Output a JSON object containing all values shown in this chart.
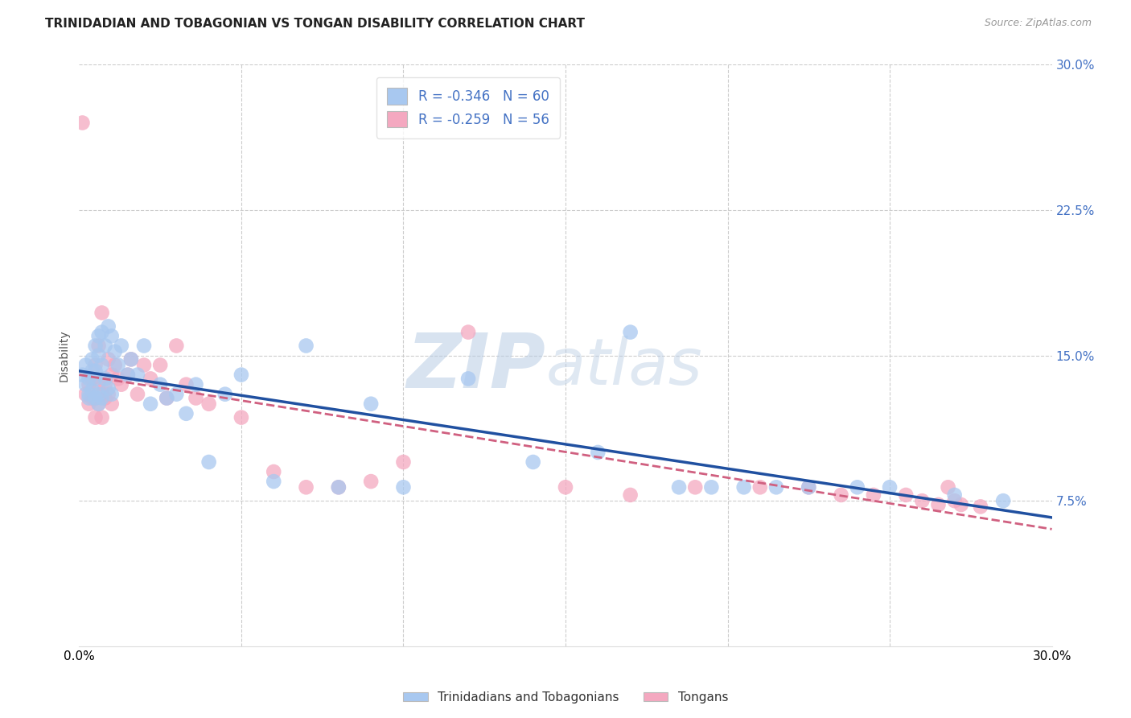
{
  "title": "TRINIDADIAN AND TOBAGONIAN VS TONGAN DISABILITY CORRELATION CHART",
  "source_text": "Source: ZipAtlas.com",
  "ylabel": "Disability",
  "xlim": [
    0.0,
    0.3
  ],
  "ylim": [
    0.0,
    0.3
  ],
  "xticks": [
    0.0,
    0.05,
    0.1,
    0.15,
    0.2,
    0.25,
    0.3
  ],
  "xtick_labels": [
    "0.0%",
    "",
    "",
    "",
    "",
    "",
    "30.0%"
  ],
  "yticks_right": [
    0.075,
    0.15,
    0.225,
    0.3
  ],
  "ytick_labels_right": [
    "7.5%",
    "15.0%",
    "22.5%",
    "30.0%"
  ],
  "blue_color": "#A8C8F0",
  "pink_color": "#F4A8C0",
  "blue_line_color": "#2050A0",
  "pink_line_color": "#D06080",
  "legend_label_1": "R = -0.346   N = 60",
  "legend_label_2": "R = -0.259   N = 56",
  "bottom_legend_blue": "Trinidadians and Tobagonians",
  "bottom_legend_pink": "Tongans",
  "watermark_zip": "ZIP",
  "watermark_atlas": "atlas",
  "watermark_color": "#C5D8EE",
  "background_color": "#ffffff",
  "grid_color": "#cccccc",
  "title_fontsize": 11,
  "blue_x": [
    0.001,
    0.002,
    0.002,
    0.003,
    0.003,
    0.003,
    0.004,
    0.004,
    0.004,
    0.005,
    0.005,
    0.005,
    0.005,
    0.006,
    0.006,
    0.006,
    0.006,
    0.007,
    0.007,
    0.007,
    0.008,
    0.008,
    0.009,
    0.009,
    0.01,
    0.01,
    0.011,
    0.012,
    0.013,
    0.015,
    0.016,
    0.018,
    0.02,
    0.022,
    0.025,
    0.027,
    0.03,
    0.033,
    0.036,
    0.04,
    0.045,
    0.05,
    0.06,
    0.07,
    0.08,
    0.09,
    0.1,
    0.12,
    0.14,
    0.16,
    0.17,
    0.185,
    0.195,
    0.205,
    0.215,
    0.225,
    0.24,
    0.25,
    0.27,
    0.285
  ],
  "blue_y": [
    0.14,
    0.145,
    0.135,
    0.13,
    0.138,
    0.128,
    0.142,
    0.132,
    0.148,
    0.155,
    0.128,
    0.138,
    0.142,
    0.16,
    0.125,
    0.15,
    0.13,
    0.162,
    0.145,
    0.128,
    0.155,
    0.138,
    0.165,
    0.133,
    0.16,
    0.13,
    0.152,
    0.145,
    0.155,
    0.14,
    0.148,
    0.14,
    0.155,
    0.125,
    0.135,
    0.128,
    0.13,
    0.12,
    0.135,
    0.095,
    0.13,
    0.14,
    0.085,
    0.155,
    0.082,
    0.125,
    0.082,
    0.138,
    0.095,
    0.1,
    0.162,
    0.082,
    0.082,
    0.082,
    0.082,
    0.082,
    0.082,
    0.082,
    0.078,
    0.075
  ],
  "pink_x": [
    0.001,
    0.002,
    0.003,
    0.003,
    0.004,
    0.004,
    0.005,
    0.005,
    0.005,
    0.006,
    0.006,
    0.006,
    0.007,
    0.007,
    0.007,
    0.008,
    0.008,
    0.009,
    0.009,
    0.01,
    0.01,
    0.011,
    0.012,
    0.013,
    0.015,
    0.016,
    0.018,
    0.02,
    0.022,
    0.025,
    0.027,
    0.03,
    0.033,
    0.036,
    0.04,
    0.05,
    0.06,
    0.07,
    0.08,
    0.09,
    0.1,
    0.12,
    0.15,
    0.17,
    0.19,
    0.21,
    0.225,
    0.235,
    0.245,
    0.255,
    0.26,
    0.265,
    0.268,
    0.27,
    0.272,
    0.278
  ],
  "pink_y": [
    0.27,
    0.13,
    0.135,
    0.125,
    0.128,
    0.138,
    0.145,
    0.128,
    0.118,
    0.155,
    0.135,
    0.125,
    0.172,
    0.118,
    0.13,
    0.135,
    0.128,
    0.148,
    0.13,
    0.14,
    0.125,
    0.145,
    0.138,
    0.135,
    0.14,
    0.148,
    0.13,
    0.145,
    0.138,
    0.145,
    0.128,
    0.155,
    0.135,
    0.128,
    0.125,
    0.118,
    0.09,
    0.082,
    0.082,
    0.085,
    0.095,
    0.162,
    0.082,
    0.078,
    0.082,
    0.082,
    0.082,
    0.078,
    0.078,
    0.078,
    0.075,
    0.073,
    0.082,
    0.075,
    0.073,
    0.072
  ]
}
